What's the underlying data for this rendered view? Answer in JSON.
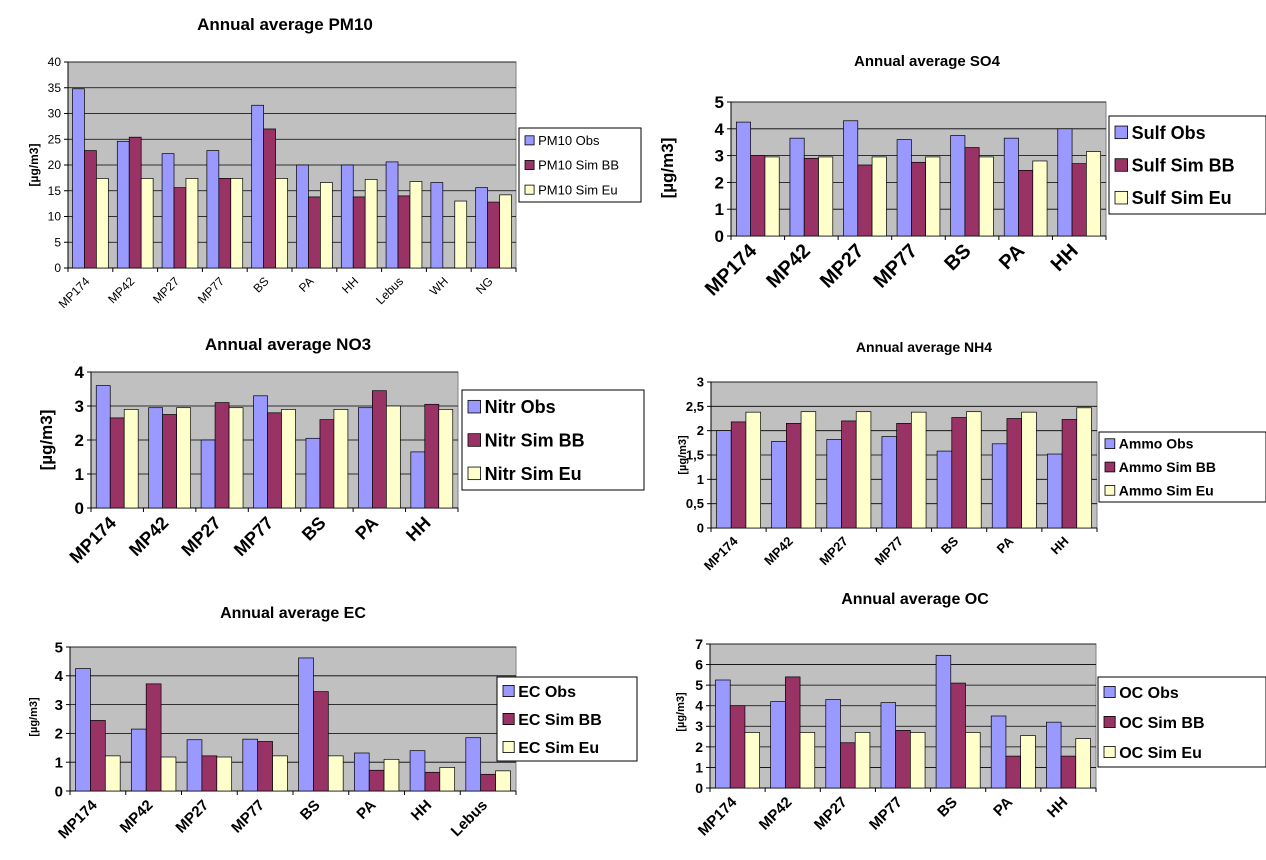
{
  "colors": {
    "plot_bg": "#c0c0c0",
    "grid": "#000000",
    "series": [
      "#9999ff",
      "#993366",
      "#ffffcc"
    ]
  },
  "chart_data": [
    {
      "type": "bar",
      "title": "Annual average PM10",
      "ylabel": "[µg/m3]",
      "categories": [
        "MP174",
        "MP42",
        "MP27",
        "MP77",
        "BS",
        "PA",
        "HH",
        "Lebus",
        "WH",
        "NG"
      ],
      "ylim": [
        0,
        40
      ],
      "yticks": [
        "0",
        "5",
        "10",
        "15",
        "20",
        "25",
        "30",
        "35",
        "40"
      ],
      "series": [
        {
          "name": "PM10 Obs",
          "values": [
            34.8,
            24.6,
            22.2,
            22.8,
            31.6,
            20.0,
            20.0,
            20.6,
            16.6,
            15.6
          ]
        },
        {
          "name": "PM10 Sim BB",
          "values": [
            22.8,
            25.4,
            15.6,
            17.4,
            27.0,
            13.8,
            13.8,
            14.0,
            0,
            12.8
          ]
        },
        {
          "name": "PM10 Sim Eu",
          "values": [
            17.4,
            17.4,
            17.4,
            17.4,
            17.4,
            16.6,
            17.2,
            16.8,
            13.0,
            14.2
          ]
        }
      ]
    },
    {
      "type": "bar",
      "title": "Annual average SO4",
      "ylabel": "[µg/m3]",
      "categories": [
        "MP174",
        "MP42",
        "MP27",
        "MP77",
        "BS",
        "PA",
        "HH"
      ],
      "ylim": [
        0,
        5
      ],
      "yticks": [
        "0",
        "1",
        "2",
        "3",
        "4",
        "5"
      ],
      "series": [
        {
          "name": "Sulf Obs",
          "values": [
            4.25,
            3.65,
            4.3,
            3.6,
            3.75,
            3.65,
            4.0
          ]
        },
        {
          "name": "Sulf Sim BB",
          "values": [
            3.0,
            2.9,
            2.65,
            2.75,
            3.3,
            2.45,
            2.7
          ]
        },
        {
          "name": "Sulf Sim Eu",
          "values": [
            2.95,
            2.95,
            2.95,
            2.95,
            2.95,
            2.8,
            3.15
          ]
        }
      ]
    },
    {
      "type": "bar",
      "title": "Annual average NO3",
      "ylabel": "[µg/m3]",
      "categories": [
        "MP174",
        "MP42",
        "MP27",
        "MP77",
        "BS",
        "PA",
        "HH"
      ],
      "ylim": [
        0,
        4
      ],
      "yticks": [
        "0",
        "1",
        "2",
        "3",
        "4"
      ],
      "series": [
        {
          "name": "Nitr Obs",
          "values": [
            3.6,
            2.95,
            2.0,
            3.3,
            2.05,
            2.95,
            1.65
          ]
        },
        {
          "name": "Nitr Sim BB",
          "values": [
            2.65,
            2.75,
            3.1,
            2.8,
            2.6,
            3.45,
            3.05
          ]
        },
        {
          "name": "Nitr Sim Eu",
          "values": [
            2.9,
            2.95,
            2.95,
            2.9,
            2.9,
            3.0,
            2.9
          ]
        }
      ]
    },
    {
      "type": "bar",
      "title": "Annual average NH4",
      "ylabel": "[µg/m3]",
      "categories": [
        "MP174",
        "MP42",
        "MP27",
        "MP77",
        "BS",
        "PA",
        "HH"
      ],
      "ylim": [
        0,
        3
      ],
      "yticks": [
        "0",
        "0,5",
        "1",
        "1,5",
        "2",
        "2,5",
        "3"
      ],
      "series": [
        {
          "name": "Ammo Obs",
          "values": [
            2.0,
            1.78,
            1.82,
            1.88,
            1.58,
            1.73,
            1.52
          ]
        },
        {
          "name": "Ammo Sim BB",
          "values": [
            2.18,
            2.15,
            2.2,
            2.15,
            2.27,
            2.25,
            2.23
          ]
        },
        {
          "name": "Ammo Sim Eu",
          "values": [
            2.38,
            2.39,
            2.39,
            2.38,
            2.39,
            2.38,
            2.47
          ]
        }
      ]
    },
    {
      "type": "bar",
      "title": "Annual average EC",
      "ylabel": "[µg/m3]",
      "categories": [
        "MP174",
        "MP42",
        "MP27",
        "MP77",
        "BS",
        "PA",
        "HH",
        "Lebus"
      ],
      "ylim": [
        0,
        5
      ],
      "yticks": [
        "0",
        "1",
        "2",
        "3",
        "4",
        "5"
      ],
      "series": [
        {
          "name": "EC Obs",
          "values": [
            4.25,
            2.15,
            1.78,
            1.8,
            4.62,
            1.32,
            1.4,
            1.85
          ]
        },
        {
          "name": "EC Sim BB",
          "values": [
            2.45,
            3.72,
            1.22,
            1.72,
            3.45,
            0.72,
            0.65,
            0.58
          ]
        },
        {
          "name": "EC Sim Eu",
          "values": [
            1.22,
            1.18,
            1.18,
            1.22,
            1.22,
            1.1,
            0.82,
            0.7
          ]
        }
      ]
    },
    {
      "type": "bar",
      "title": "Annual average OC",
      "ylabel": "[µg/m3]",
      "categories": [
        "MP174",
        "MP42",
        "MP27",
        "MP77",
        "BS",
        "PA",
        "HH"
      ],
      "ylim": [
        0,
        7
      ],
      "yticks": [
        "0",
        "1",
        "2",
        "3",
        "4",
        "5",
        "6",
        "7"
      ],
      "series": [
        {
          "name": "OC Obs",
          "values": [
            5.25,
            4.2,
            4.3,
            4.15,
            6.45,
            3.5,
            3.2
          ]
        },
        {
          "name": "OC Sim BB",
          "values": [
            4.0,
            5.4,
            2.2,
            2.8,
            5.1,
            1.55,
            1.55
          ]
        },
        {
          "name": "OC Sim Eu",
          "values": [
            2.7,
            2.7,
            2.7,
            2.7,
            2.7,
            2.55,
            2.4
          ]
        }
      ]
    }
  ]
}
